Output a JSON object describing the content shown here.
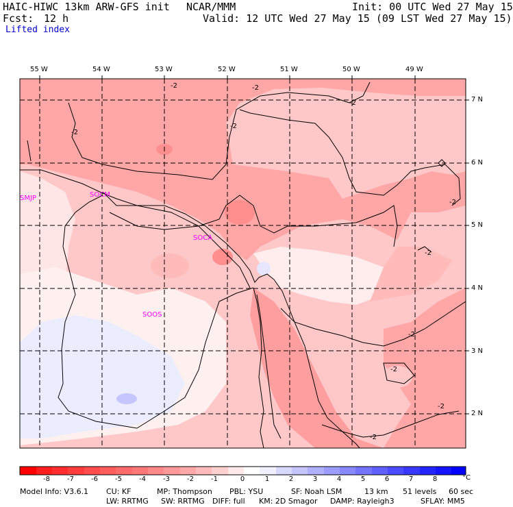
{
  "header": {
    "model_title": "HAIC-HIWC 13km ARW-GFS init",
    "center": "NCAR/MMM",
    "init": "Init: 00 UTC Wed 27 May 15",
    "fcst_label": "Fcst:",
    "fcst_value": "12 h",
    "valid": "Valid: 12 UTC Wed 27 May 15 (09 LST Wed 27 May 15)",
    "field": "Lifted index"
  },
  "map": {
    "lon_labels": [
      "55 W",
      "54 W",
      "53 W",
      "52 W",
      "51 W",
      "50 W",
      "49 W"
    ],
    "lat_labels": [
      "7 N",
      "6 N",
      "5 N",
      "4 N",
      "3 N",
      "2 N"
    ],
    "stations": [
      "SMJP",
      "SOCM",
      "SOCA",
      "SOOS"
    ],
    "contour_label": "-2",
    "colors": {
      "station": "#ff00ff",
      "contour": "#000000",
      "grid": "#000000"
    }
  },
  "colorbar": {
    "labels": [
      "-8",
      "-7",
      "-6",
      "-5",
      "-4",
      "-3",
      "-2",
      "-1",
      "0",
      "1",
      "2",
      "3",
      "4",
      "5",
      "6",
      "7",
      "8"
    ],
    "unit": "°C",
    "colors": [
      "#ff0000",
      "#ff2828",
      "#ff4545",
      "#ff5c5c",
      "#ff7474",
      "#ff8e8e",
      "#ffa8a8",
      "#ffc6c6",
      "#ffe6e6",
      "#e6e6ff",
      "#c6c6ff",
      "#a0a0ff",
      "#8080ff",
      "#5c5cff",
      "#3838ff",
      "#1414ff",
      "#0000ff"
    ]
  },
  "footer": {
    "line1": [
      "Model Info: V3.6.1",
      "CU: KF",
      "MP: Thompson",
      "PBL: YSU",
      "SF: Noah LSM",
      "13 km",
      "51 levels",
      "60 sec"
    ],
    "line2": [
      "LW: RRTMG",
      "SW: RRTMG",
      "DIFF: full",
      "KM: 2D Smagor",
      "DAMP: Rayleigh3",
      "SFLAY: MM5"
    ]
  }
}
